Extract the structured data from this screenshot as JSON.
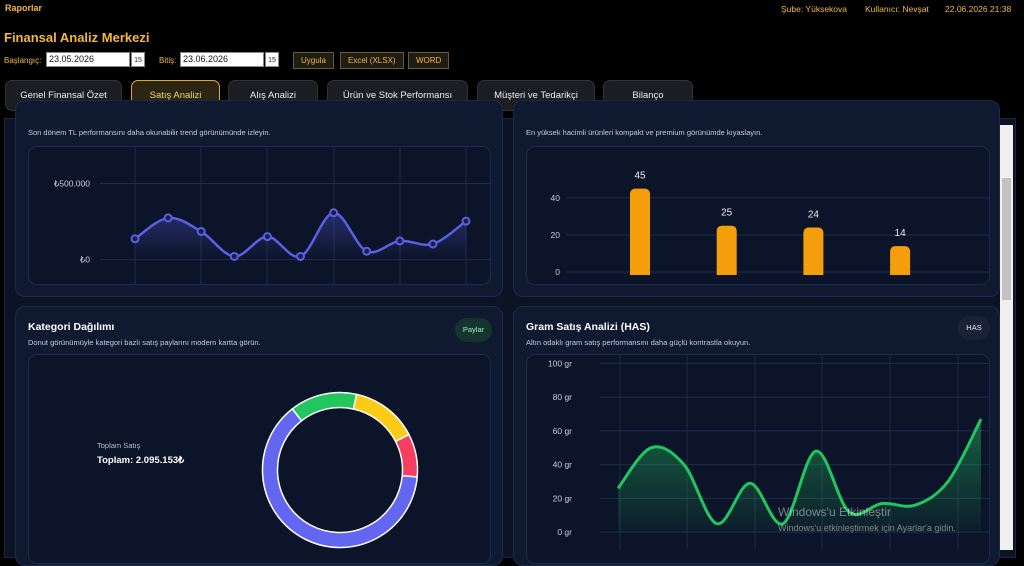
{
  "top_bar": {
    "title": "Raporlar",
    "branch": "Şube: Yüksekova",
    "user": "Kullanıcı: Nevşat",
    "datetime": "22.06.2026 21:38"
  },
  "header": {
    "title": "Finansal Analiz Merkezi"
  },
  "filters": {
    "start_label": "Başlangıç:",
    "start_date": "23.05.2026",
    "end_label": "Bitiş:",
    "end_date": "23.06.2026",
    "calendar_icon": "15",
    "buttons": [
      "Uygula",
      "Excel (XLSX)",
      "WORD"
    ]
  },
  "tabs": [
    "Genel Finansal Özet",
    "Satış Analizi",
    "Alış Analizi",
    "Ürün ve Stok Performansı",
    "Müşteri ve Tedarikçi",
    "Bilanço"
  ],
  "active_tab": 1,
  "cards": [
    {
      "subtitle": "Son dönem TL performansını daha okunabilir trend görünümünde izleyin.",
      "chart": {
        "type": "line",
        "color": "#5b5ee6",
        "values": [
          137000,
          274000,
          185000,
          21000,
          151000,
          21000,
          308000,
          55000,
          123000,
          103000,
          253000
        ],
        "ylim": [
          -160000,
          740000
        ],
        "yticks": [
          {
            "value": 0,
            "label": "₺0"
          },
          {
            "value": 500000,
            "label": "₺500.000"
          }
        ]
      }
    },
    {
      "subtitle": "En yüksek hacimli ürünleri kompakt ve premium görünümde kıyaslayın.",
      "chart": {
        "type": "bar",
        "color": "#f59e0b",
        "values": [
          45,
          25,
          24,
          14
        ],
        "ylim": [
          -5.4,
          67.5
        ],
        "yticks": [
          0,
          20,
          40
        ]
      }
    },
    {
      "title": "Kategori Dağılımı",
      "badge": "Paylar",
      "subtitle": "Donut görünümüyle kategori bazlı satış paylarını modern kartta görün.",
      "total_label": "Toplam Satış",
      "total": "Toplam: 2.095.153₺",
      "chart": {
        "type": "donut",
        "values": [
          14,
          14,
          9,
          63
        ],
        "colors": [
          "#22c55e",
          "#facc15",
          "#f43f5e",
          "#6366f1"
        ]
      }
    },
    {
      "title": "Gram Satış Analizi (HAS)",
      "badge": "HAS",
      "subtitle": "Altın odaklı gram satış performansını daha güçlü kontrastla okuyun.",
      "chart": {
        "type": "area",
        "color": "#22c55e",
        "values": [
          26,
          50,
          40,
          5,
          29,
          5,
          48,
          12,
          17,
          16,
          30,
          67
        ],
        "ylim": [
          -10,
          105
        ],
        "yticks": [
          {
            "value": 0,
            "label": "0 gr"
          },
          {
            "value": 20,
            "label": "20 gr"
          },
          {
            "value": 40,
            "label": "40 gr"
          },
          {
            "value": 60,
            "label": "60 gr"
          },
          {
            "value": 80,
            "label": "80 gr"
          },
          {
            "value": 100,
            "label": "100 gr"
          }
        ]
      }
    }
  ],
  "watermark": {
    "title": "Windows'u Etkinleştir",
    "text": "Windows'u etkinleştirmek için Ayarlar'a gidin."
  }
}
